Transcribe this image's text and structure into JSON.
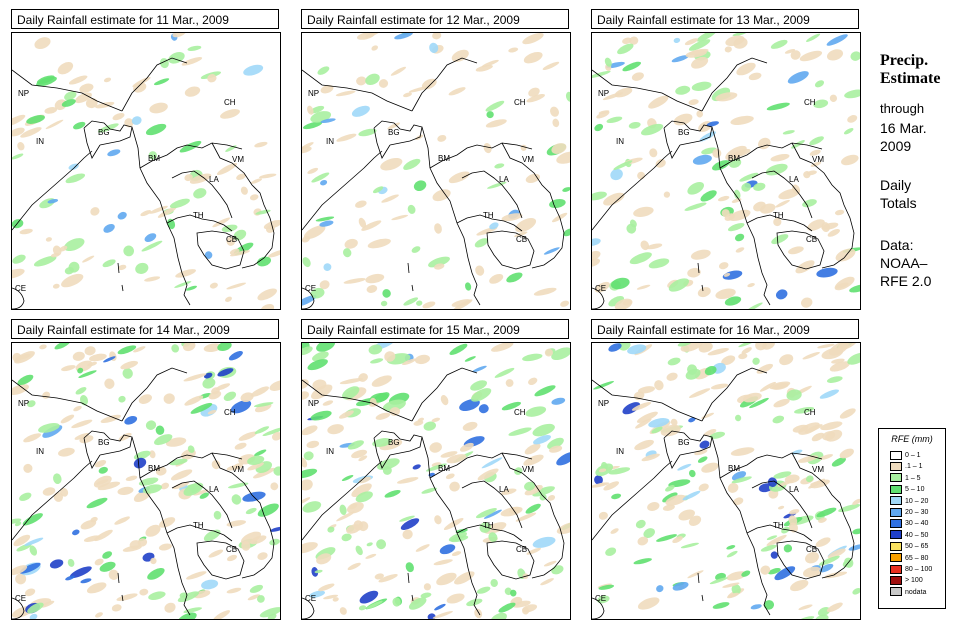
{
  "panels": [
    {
      "title": "Daily Rainfall estimate for  11 Mar., 2009",
      "rain_level": 1
    },
    {
      "title": "Daily Rainfall estimate for  12 Mar., 2009",
      "rain_level": 1
    },
    {
      "title": "Daily Rainfall estimate for  13 Mar., 2009",
      "rain_level": 2
    },
    {
      "title": "Daily Rainfall estimate for  14 Mar., 2009",
      "rain_level": 3
    },
    {
      "title": "Daily Rainfall estimate for  15 Mar., 2009",
      "rain_level": 3
    },
    {
      "title": "Daily Rainfall estimate for  16 Mar., 2009",
      "rain_level": 3
    }
  ],
  "country_labels": [
    "NP",
    "CH",
    "IN",
    "BG",
    "BM",
    "VM",
    "LA",
    "TH",
    "CB",
    "CE"
  ],
  "sidebar": {
    "title_line1": "Precip.",
    "title_line2": "Estimate",
    "through": "through",
    "date_line1": "16 Mar.",
    "date_line2": "2009",
    "totals_line1": "Daily",
    "totals_line2": "Totals",
    "data_line1": "Data:",
    "data_line2": "NOAA–",
    "data_line3": "RFE 2.0"
  },
  "legend": {
    "title": "RFE (mm)",
    "items": [
      {
        "label": "0 – 1",
        "color": "#ffffff"
      },
      {
        "label": ".1 – 1",
        "color": "#f0dcbe"
      },
      {
        "label": "1 – 5",
        "color": "#a8f0a0"
      },
      {
        "label": "5 – 10",
        "color": "#60e070"
      },
      {
        "label": "10 – 20",
        "color": "#a0d8f8"
      },
      {
        "label": "20 – 30",
        "color": "#60a8f0"
      },
      {
        "label": "30 – 40",
        "color": "#3070e0"
      },
      {
        "label": "40 – 50",
        "color": "#2040c8"
      },
      {
        "label": "50 – 65",
        "color": "#f8e060"
      },
      {
        "label": "65 – 80",
        "color": "#f8a000"
      },
      {
        "label": "80 – 100",
        "color": "#e83020"
      },
      {
        "label": "> 100",
        "color": "#a01010"
      },
      {
        "label": "nodata",
        "color": "#c8c8c8"
      }
    ]
  }
}
